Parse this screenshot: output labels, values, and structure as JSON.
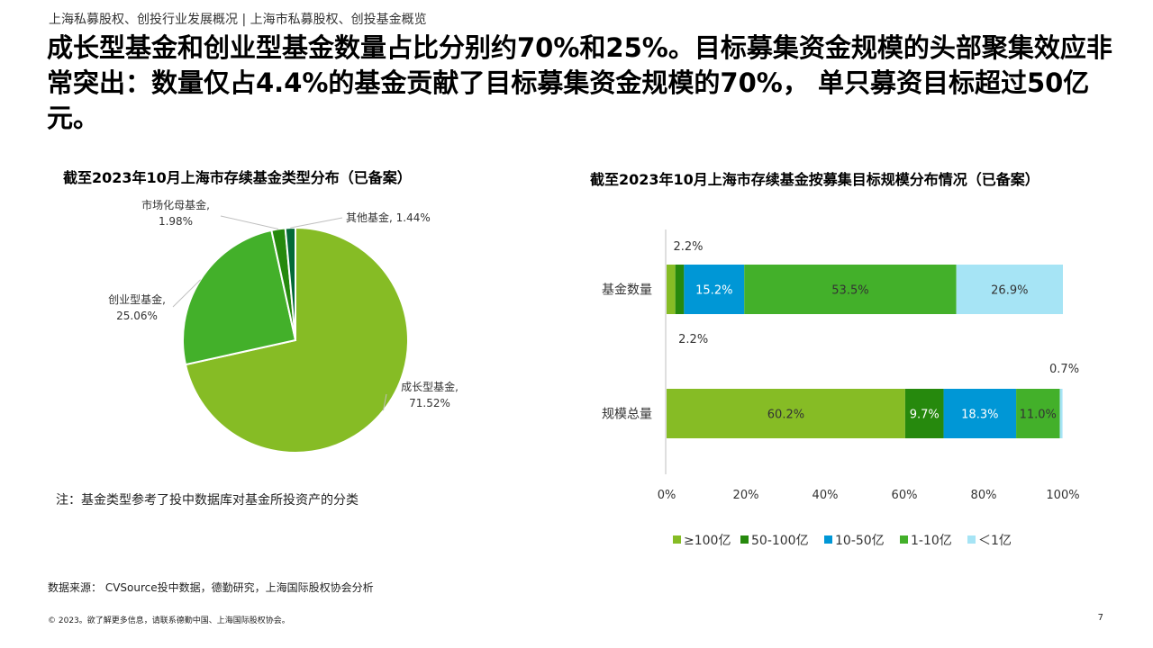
{
  "header": {
    "breadcrumb": "上海私募股权、创投行业发展概况 | 上海市私募股权、创投基金概览",
    "headline": "成长型基金和创业型基金数量占比分别约70%和25%。目标募集资金规模的头部聚集效应非常突出：数量仅占4.4%的基金贡献了目标募集资金规模的70%， 单只募资目标超过50亿元。"
  },
  "chart_data": [
    {
      "type": "pie",
      "title": "截至2023年10月上海市存续基金类型分布（已备案）",
      "slices": [
        {
          "label": "成长型基金,",
          "value_label": "71.52%",
          "value": 71.52,
          "color": "#86bc25"
        },
        {
          "label": "创业型基金,",
          "value_label": "25.06%",
          "value": 25.06,
          "color": "#43b02a"
        },
        {
          "label": "市场化母基金,",
          "value_label": "1.98%",
          "value": 1.98,
          "color": "#26890d"
        },
        {
          "label": "其他基金,",
          "value_label": "1.44%",
          "value": 1.44,
          "color": "#046a38"
        }
      ]
    },
    {
      "type": "bar",
      "orientation": "horizontal-stacked-100",
      "title": "截至2023年10月上海市存续基金按募集目标规模分布情况（已备案）",
      "categories": [
        "基金数量",
        "规模总量"
      ],
      "series": [
        {
          "name": "≥100亿",
          "color": "#86bc25",
          "values": [
            2.2,
            60.2
          ],
          "labels": [
            "2.2%",
            "60.2%"
          ]
        },
        {
          "name": "50-100亿",
          "color": "#26890d",
          "values": [
            2.2,
            9.7
          ],
          "labels": [
            "2.2%",
            "9.7%"
          ]
        },
        {
          "name": "10-50亿",
          "color": "#0097d6",
          "values": [
            15.2,
            18.3
          ],
          "labels": [
            "15.2%",
            "18.3%"
          ]
        },
        {
          "name": "1-10亿",
          "color": "#43b02a",
          "values": [
            53.5,
            11.0
          ],
          "labels": [
            "53.5%",
            "11.0%"
          ]
        },
        {
          "name": "＜1亿",
          "color": "#a6e4f5",
          "values": [
            26.9,
            0.7
          ],
          "labels": [
            "26.9%",
            "0.7%"
          ]
        }
      ],
      "xticks": [
        "0%",
        "20%",
        "40%",
        "60%",
        "80%",
        "100%"
      ],
      "xlim": [
        0,
        100
      ],
      "legend_position": "bottom"
    }
  ],
  "footer": {
    "note": "注：基金类型参考了投中数据库对基金所投资产的分类",
    "source": "数据来源： CVSource投中数据，德勤研究，上海国际股权协会分析",
    "copyright": "© 2023。欲了解更多信息，请联系德勤中国、上海国际股权协会。",
    "page_number": "7"
  }
}
